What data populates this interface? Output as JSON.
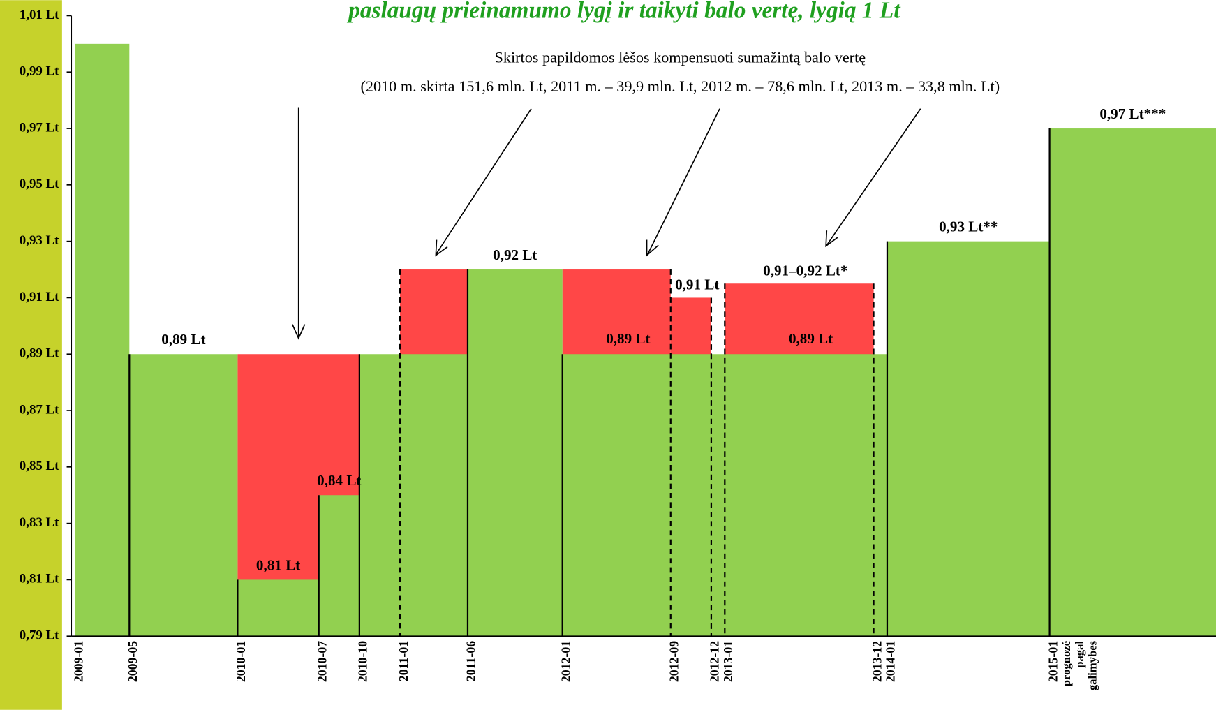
{
  "chart_data": {
    "type": "step",
    "title": "paslaugų prieinamumo lygį ir taikyti balo vertę, lygią 1 Lt",
    "annotation": [
      "Skirtos papildomos lėšos kompensuoti sumažintą balo vertę",
      "(2010 m. skirta 151,6 mln. Lt, 2011 m. – 39,9 mln. Lt, 2012 m. – 78,6 mln. Lt, 2013 m. – 33,8 mln. Lt)"
    ],
    "ylim": [
      0.79,
      1.01
    ],
    "yticks": [
      {
        "value": 0.79,
        "label": "0,79 Lt"
      },
      {
        "value": 0.81,
        "label": "0,81 Lt"
      },
      {
        "value": 0.83,
        "label": "0,83 Lt"
      },
      {
        "value": 0.85,
        "label": "0,85 Lt"
      },
      {
        "value": 0.87,
        "label": "0,87 Lt"
      },
      {
        "value": 0.89,
        "label": "0,89 Lt"
      },
      {
        "value": 0.91,
        "label": "0,91 Lt"
      },
      {
        "value": 0.93,
        "label": "0,93 Lt"
      },
      {
        "value": 0.95,
        "label": "0,95 Lt"
      },
      {
        "value": 0.97,
        "label": "0,97 Lt"
      },
      {
        "value": 0.99,
        "label": "0,99 Lt"
      },
      {
        "value": 1.01,
        "label": "1,01 Lt"
      }
    ],
    "xticks": [
      "2009-01",
      "2009-05",
      "2010-01",
      "2010-07",
      "2010-10",
      "2011-01",
      "2011-06",
      "2012-01",
      "2012-09",
      "2012-12",
      "2013-01",
      "2013-12",
      "2014-01",
      "2015-01"
    ],
    "forecast_note": [
      "prognozė",
      "pagal",
      "galimybes"
    ],
    "green": {
      "color": "#92d050",
      "x": [
        "2009-01",
        "2009-05",
        "2010-01",
        "2010-07",
        "2010-10",
        "2011-06",
        "2012-01",
        "2014-01",
        "2015-01"
      ],
      "values": [
        1.0,
        0.89,
        0.81,
        0.84,
        0.89,
        0.92,
        0.89,
        0.93,
        0.97
      ],
      "value_labels": [
        null,
        "0,89 Lt",
        "0,81 Lt",
        "0,84 Lt",
        null,
        "0,92 Lt",
        null,
        "0,93 Lt**",
        "0,97 Lt***"
      ]
    },
    "red_color": "#ff4747",
    "red": [
      {
        "start": "2010-01",
        "end": "2010-10",
        "value": 0.89
      },
      {
        "start": "2011-01",
        "end": "2011-06",
        "value": 0.92
      },
      {
        "start": "2012-01",
        "end": "2012-09",
        "value": 0.92,
        "base_label": "0,89 Lt"
      },
      {
        "start": "2012-09",
        "end": "2012-12",
        "value": 0.91,
        "label": "0,91 Lt"
      },
      {
        "start": "2013-01",
        "end": "2013-12",
        "value": 0.915,
        "label": "0,91–0,92 Lt*",
        "base_label": "0,89 Lt"
      }
    ]
  }
}
